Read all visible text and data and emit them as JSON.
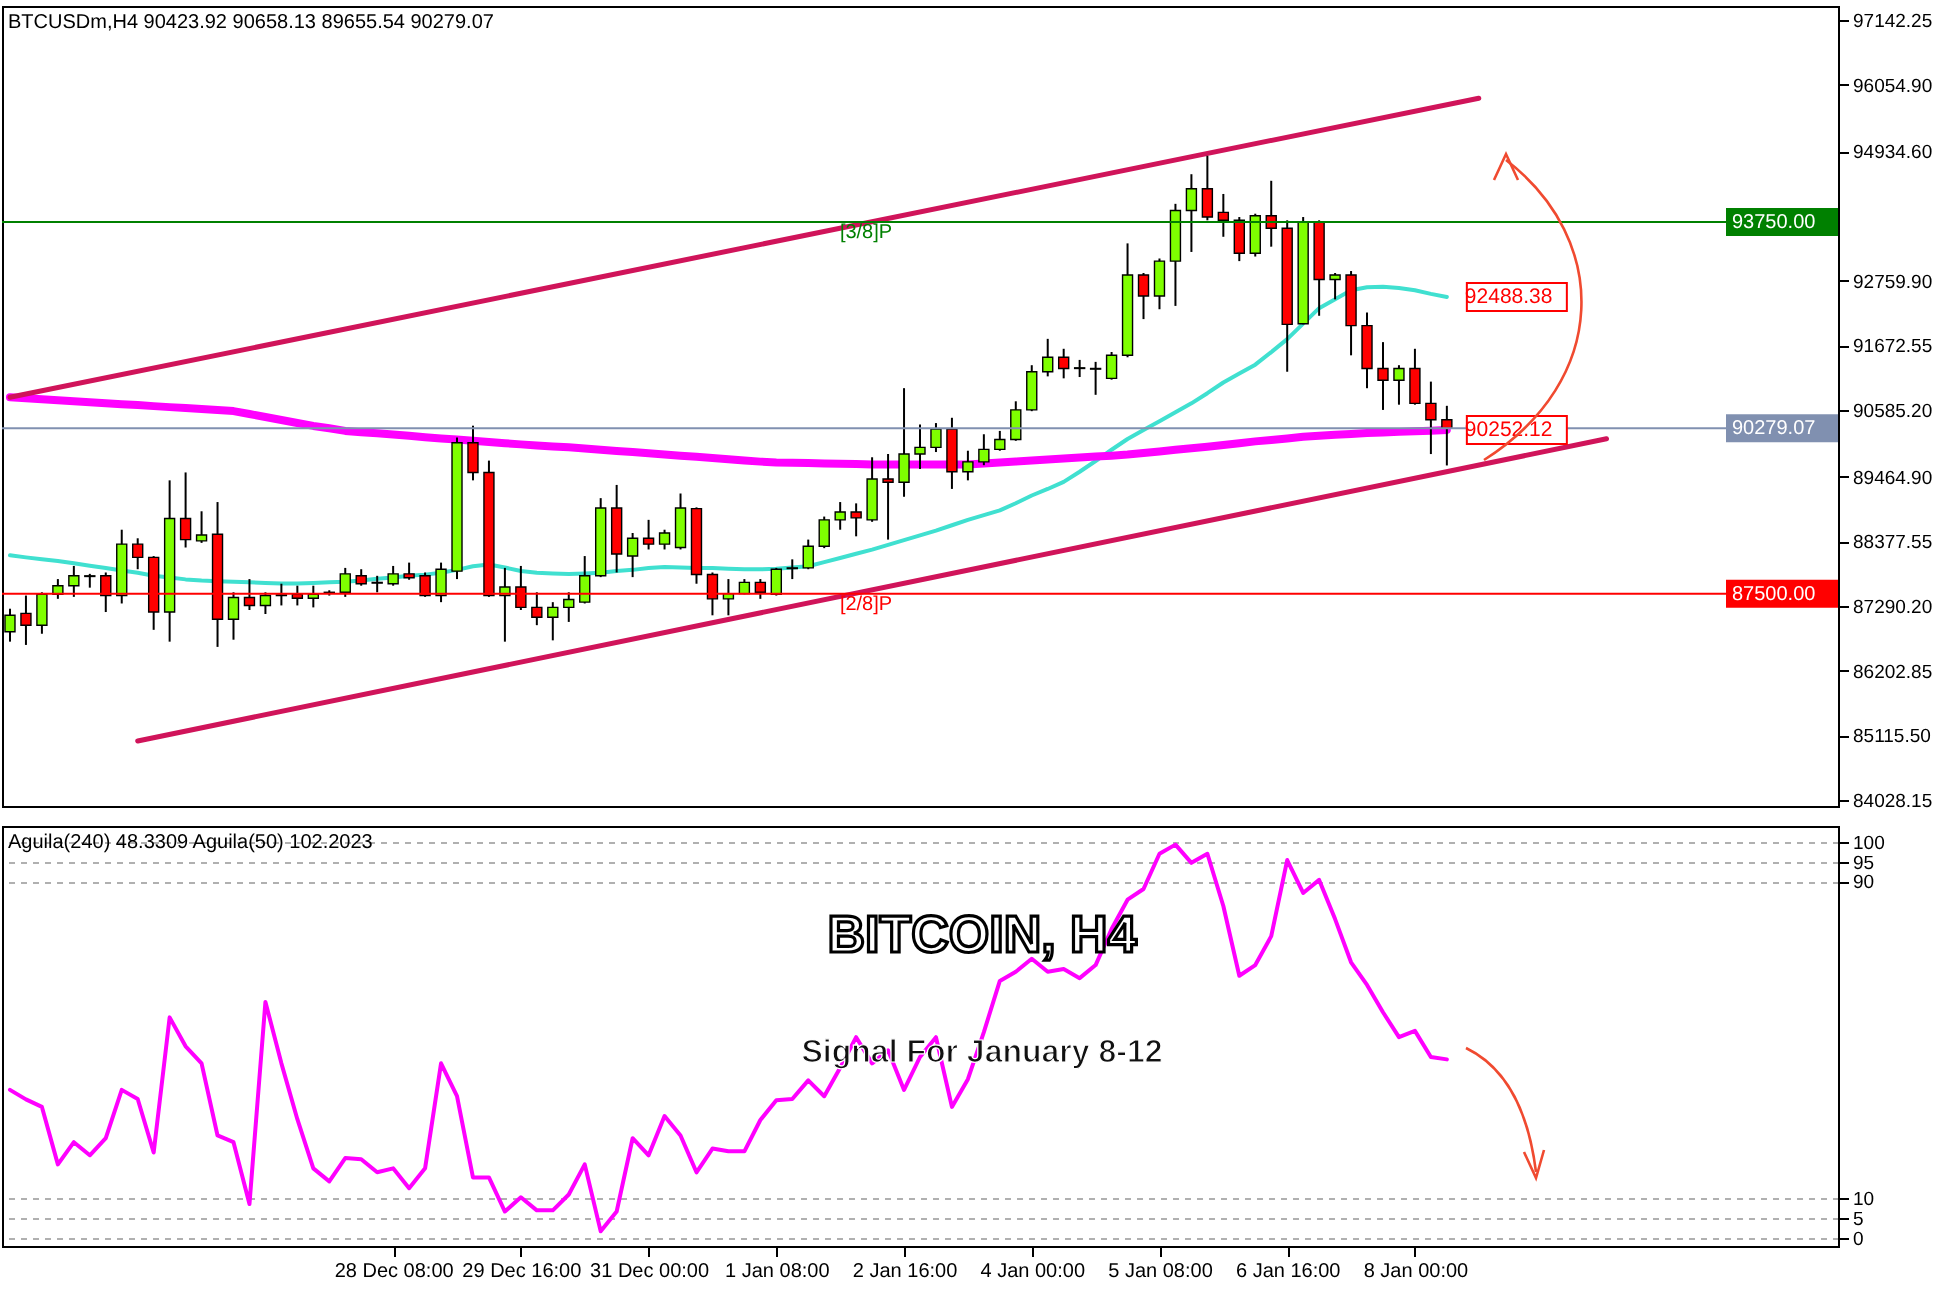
{
  "chart_data": [
    {
      "type": "candlestick",
      "title": "BTCUSDm,H4  90423.92 90658.13 89655.54 90279.07",
      "categories": [
        null,
        null,
        null,
        null,
        null,
        null,
        null,
        null,
        null,
        null,
        null,
        null,
        null,
        null,
        null,
        null,
        null,
        null,
        null,
        null,
        null,
        null,
        null,
        null,
        null,
        null,
        null,
        null,
        null,
        null,
        null,
        null,
        null,
        null,
        null,
        null,
        null,
        null,
        null,
        null,
        null,
        null,
        null,
        null,
        null,
        null,
        null,
        null,
        null,
        null,
        null,
        null,
        null,
        null,
        null,
        null,
        null,
        null,
        null,
        null,
        null,
        null,
        null,
        null,
        null,
        null,
        null,
        null,
        null,
        null,
        null,
        null,
        null,
        null,
        null,
        null,
        null,
        null,
        null,
        null,
        null,
        null,
        null,
        null,
        null,
        null,
        null,
        null,
        null,
        null,
        null,
        null,
        null,
        null,
        null,
        null,
        null,
        null,
        null,
        null,
        null,
        null,
        null,
        null,
        null,
        null,
        null,
        null,
        null,
        null,
        null,
        null,
        null,
        null,
        null
      ],
      "ohlc": [
        [
          86859,
          87247,
          86693,
          87136
        ],
        [
          87169,
          87468,
          86638,
          86970
        ],
        [
          86970,
          87523,
          86826,
          87490
        ],
        [
          87490,
          87745,
          87413,
          87634
        ],
        [
          87634,
          87966,
          87446,
          87800
        ],
        [
          87789,
          87833,
          87601,
          87800
        ],
        [
          87800,
          87856,
          87191,
          87468
        ],
        [
          87468,
          88575,
          87335,
          88332
        ],
        [
          88332,
          88431,
          87911,
          88110
        ],
        [
          88110,
          88132,
          86892,
          87191
        ],
        [
          87191,
          89405,
          86693,
          88763
        ],
        [
          88763,
          89538,
          88276,
          88409
        ],
        [
          88387,
          88885,
          88354,
          88487
        ],
        [
          88498,
          89040,
          86605,
          87070
        ],
        [
          87070,
          87523,
          86726,
          87435
        ],
        [
          87435,
          87745,
          87225,
          87302
        ],
        [
          87302,
          87523,
          87158,
          87468
        ],
        [
          87468,
          87667,
          87302,
          87479
        ],
        [
          87490,
          87634,
          87302,
          87424
        ],
        [
          87424,
          87634,
          87269,
          87490
        ],
        [
          87512,
          87557,
          87468,
          87523
        ],
        [
          87523,
          87933,
          87446,
          87833
        ],
        [
          87800,
          87911,
          87634,
          87667
        ],
        [
          87689,
          87800,
          87523,
          87678
        ],
        [
          87667,
          87966,
          87634,
          87833
        ],
        [
          87833,
          88022,
          87734,
          87767
        ],
        [
          87800,
          87856,
          87446,
          87468
        ],
        [
          87468,
          88022,
          87357,
          87911
        ],
        [
          87878,
          90125,
          87745,
          90036
        ],
        [
          90036,
          90324,
          89405,
          89538
        ],
        [
          89538,
          89737,
          87446,
          87468
        ],
        [
          87468,
          87933,
          86693,
          87612
        ],
        [
          87612,
          87966,
          87225,
          87269
        ],
        [
          87269,
          87523,
          86970,
          87103
        ],
        [
          87103,
          87357,
          86715,
          87269
        ],
        [
          87269,
          87523,
          87025,
          87402
        ],
        [
          87357,
          88132,
          87335,
          87800
        ],
        [
          87800,
          89106,
          87778,
          88940
        ],
        [
          88940,
          89328,
          87856,
          88166
        ],
        [
          88132,
          88520,
          87778,
          88431
        ],
        [
          88431,
          88741,
          88243,
          88332
        ],
        [
          88332,
          88575,
          88243,
          88520
        ],
        [
          88276,
          89184,
          88243,
          88940
        ],
        [
          88929,
          88951,
          87667,
          87822
        ],
        [
          87822,
          87856,
          87136,
          87413
        ],
        [
          87413,
          87745,
          87136,
          87501
        ],
        [
          87501,
          87745,
          87490,
          87689
        ],
        [
          87689,
          87745,
          87413,
          87523
        ],
        [
          87490,
          87933,
          87468,
          87911
        ],
        [
          87922,
          88077,
          87745,
          87933
        ],
        [
          87933,
          88409,
          87911,
          88298
        ],
        [
          88298,
          88796,
          88265,
          88741
        ],
        [
          88741,
          89040,
          88575,
          88874
        ],
        [
          88874,
          89018,
          88464,
          88774
        ],
        [
          88741,
          89793,
          88708,
          89427
        ],
        [
          89427,
          89848,
          88409,
          89372
        ],
        [
          89372,
          90955,
          89129,
          89848
        ],
        [
          89848,
          90346,
          89594,
          89959
        ],
        [
          89959,
          90368,
          89881,
          90269
        ],
        [
          90269,
          90457,
          89261,
          89549
        ],
        [
          89549,
          89903,
          89405,
          89715
        ],
        [
          89715,
          90180,
          89660,
          89926
        ],
        [
          89926,
          90236,
          89903,
          90092
        ],
        [
          90092,
          90734,
          90070,
          90590
        ],
        [
          90590,
          91341,
          90568,
          91231
        ],
        [
          91231,
          91784,
          91153,
          91474
        ],
        [
          91474,
          91617,
          91120,
          91286
        ],
        [
          91286,
          91430,
          91142,
          91297
        ],
        [
          91275,
          91397,
          90843,
          91286
        ],
        [
          91120,
          91563,
          91098,
          91507
        ],
        [
          91507,
          93389,
          91474,
          92858
        ],
        [
          92858,
          92891,
          92116,
          92504
        ],
        [
          92504,
          93135,
          92282,
          93090
        ],
        [
          93090,
          94054,
          92338,
          93943
        ],
        [
          93943,
          94552,
          93245,
          94308
        ],
        [
          94308,
          94862,
          93777,
          93832
        ],
        [
          93910,
          94220,
          93500,
          93777
        ],
        [
          93777,
          93832,
          93091,
          93223
        ],
        [
          93223,
          93888,
          93168,
          93854
        ],
        [
          93854,
          94441,
          93334,
          93644
        ],
        [
          93644,
          93777,
          91231,
          92028
        ],
        [
          92039,
          93832,
          92028,
          93755
        ],
        [
          93755,
          93777,
          92172,
          92781
        ],
        [
          92781,
          92891,
          92448,
          92858
        ],
        [
          92858,
          92924,
          91507,
          92006
        ],
        [
          92006,
          92227,
          90954,
          91286
        ],
        [
          91286,
          91729,
          90589,
          91087
        ],
        [
          91087,
          91341,
          90677,
          91286
        ],
        [
          91286,
          91617,
          90677,
          90699
        ],
        [
          90699,
          91065,
          89847,
          90423
        ],
        [
          90423.92,
          90658.13,
          89655.54,
          90279.07
        ],
        null,
        null,
        null,
        null,
        null,
        null,
        null,
        null,
        null,
        null,
        null,
        null,
        null,
        null,
        null,
        null,
        null,
        null,
        null,
        null,
        null,
        null,
        null,
        null
      ],
      "colors": [
        "#7fff00",
        "#ff0000",
        "#7fff00",
        "#7fff00",
        "#7fff00",
        "#7fff00",
        "#ff0000",
        "#7fff00",
        "#ff0000",
        "#ff0000",
        "#7fff00",
        "#ff0000",
        "#7fff00",
        "#ff0000",
        "#7fff00",
        "#ff0000",
        "#7fff00",
        "#7fff00",
        "#ff0000",
        "#7fff00",
        "#7fff00",
        "#7fff00",
        "#ff0000",
        "#ff0000",
        "#7fff00",
        "#ff0000",
        "#ff0000",
        "#7fff00",
        "#7fff00",
        "#ff0000",
        "#ff0000",
        "#7fff00",
        "#ff0000",
        "#ff0000",
        "#7fff00",
        "#7fff00",
        "#7fff00",
        "#7fff00",
        "#ff0000",
        "#7fff00",
        "#ff0000",
        "#7fff00",
        "#7fff00",
        "#ff0000",
        "#ff0000",
        "#7fff00",
        "#7fff00",
        "#ff0000",
        "#7fff00",
        "#7fff00",
        "#7fff00",
        "#7fff00",
        "#7fff00",
        "#ff0000",
        "#7fff00",
        "#ff0000",
        "#7fff00",
        "#7fff00",
        "#7fff00",
        "#ff0000",
        "#7fff00",
        "#7fff00",
        "#7fff00",
        "#7fff00",
        "#7fff00",
        "#7fff00",
        "#ff0000",
        "#7fff00",
        "#7fff00",
        "#7fff00",
        "#7fff00",
        "#ff0000",
        "#7fff00",
        "#7fff00",
        "#7fff00",
        "#ff0000",
        "#ff0000",
        "#ff0000",
        "#7fff00",
        "#ff0000",
        "#ff0000",
        "#7fff00",
        "#ff0000",
        "#7fff00",
        "#ff0000",
        "#ff0000",
        "#ff0000",
        "#7fff00",
        "#ff0000",
        "#ff0000",
        "#ff0000",
        null,
        null,
        null,
        null,
        null,
        null,
        null,
        null,
        null,
        null,
        null,
        null,
        null,
        null,
        null,
        null,
        null,
        null,
        null,
        null,
        null,
        null,
        null,
        null
      ],
      "series": [
        {
          "type": "line",
          "color": "#40e0d0",
          "values": [
            88145,
            88110,
            88080,
            88050,
            88010,
            87970,
            87930,
            87890,
            87850,
            87800,
            87770,
            87740,
            87720,
            87710,
            87700,
            87690,
            87680,
            87670,
            87670,
            87680,
            87690,
            87700,
            87720,
            87750,
            87770,
            87800,
            87820,
            87850,
            87900,
            87960,
            87990,
            87940,
            87880,
            87850,
            87840,
            87830,
            87840,
            87850,
            87880,
            87900,
            87930,
            87950,
            87940,
            87930,
            87930,
            87920,
            87910,
            87910,
            87920,
            87940,
            87960,
            88030,
            88100,
            88170,
            88240,
            88320,
            88400,
            88480,
            88560,
            88650,
            88740,
            88820,
            88900,
            89020,
            89150,
            89260,
            89380,
            89550,
            89730,
            89920,
            90100,
            90250,
            90400,
            90550,
            90700,
            90870,
            91050,
            91200,
            91350,
            91560,
            91780,
            92040,
            92300,
            92450,
            92600,
            92650,
            92660,
            92640,
            92600,
            92540,
            92488.38,
            null,
            null,
            null,
            null,
            null,
            null,
            null,
            null,
            null,
            null,
            null,
            null,
            null,
            null,
            null,
            null,
            null,
            null,
            null,
            null,
            null,
            null,
            null,
            null
          ],
          "value_labels": [
            null,
            null,
            null,
            null,
            null,
            null,
            null,
            null,
            null,
            null,
            null,
            null,
            null,
            null,
            null,
            null,
            null,
            null,
            null,
            null,
            null,
            null,
            null,
            null,
            null,
            null,
            null,
            null,
            null,
            null,
            null,
            null,
            null,
            null,
            null,
            null,
            null,
            null,
            null,
            null,
            null,
            null,
            null,
            null,
            null,
            null,
            null,
            null,
            null,
            null,
            null,
            null,
            null,
            null,
            null,
            null,
            null,
            null,
            null,
            null,
            null,
            null,
            null,
            null,
            null,
            null,
            null,
            null,
            null,
            null,
            null,
            null,
            null,
            null,
            null,
            null,
            null,
            null,
            null,
            null,
            null,
            null,
            null,
            null,
            null,
            null,
            null,
            null,
            null,
            null,
            "92488.38",
            null,
            null,
            null,
            null,
            null,
            null,
            null,
            null,
            null,
            null,
            null,
            null,
            null,
            null,
            null,
            null,
            null,
            null,
            null,
            null,
            null,
            null,
            null,
            null
          ]
        },
        {
          "type": "line",
          "color": "#ff00ff",
          "values": [
            90801,
            90785,
            90770,
            90753,
            90736,
            90720,
            90703,
            90686,
            90670,
            90653,
            90636,
            90620,
            90603,
            90586,
            90569,
            90520,
            90470,
            90420,
            90370,
            90320,
            90280,
            90236,
            90215,
            90195,
            90175,
            90155,
            90130,
            90110,
            90090,
            90070,
            90050,
            90030,
            90010,
            89990,
            89975,
            89960,
            89940,
            89920,
            89900,
            89880,
            89860,
            89838,
            89820,
            89800,
            89780,
            89760,
            89740,
            89720,
            89705,
            89700,
            89695,
            89690,
            89685,
            89680,
            89672,
            89672,
            89672,
            89672,
            89672,
            89672,
            89672,
            89690,
            89705,
            89720,
            89740,
            89755,
            89772,
            89790,
            89805,
            89820,
            89838,
            89865,
            89890,
            89920,
            89945,
            89971,
            90000,
            90030,
            90060,
            90085,
            90110,
            90137,
            90155,
            90170,
            90185,
            90200,
            90210,
            90220,
            90230,
            90240,
            90252.12,
            null,
            null,
            null,
            null,
            null,
            null,
            null,
            null,
            null,
            null,
            null,
            null,
            null,
            null,
            null,
            null,
            null,
            null,
            null,
            null,
            null,
            null,
            null,
            null
          ],
          "value_labels": [
            null,
            null,
            null,
            null,
            null,
            null,
            null,
            null,
            null,
            null,
            null,
            null,
            null,
            null,
            null,
            null,
            null,
            null,
            null,
            null,
            null,
            null,
            null,
            null,
            null,
            null,
            null,
            null,
            null,
            null,
            null,
            null,
            null,
            null,
            null,
            null,
            null,
            null,
            null,
            null,
            null,
            null,
            null,
            null,
            null,
            null,
            null,
            null,
            null,
            null,
            null,
            null,
            null,
            null,
            null,
            null,
            null,
            null,
            null,
            null,
            null,
            null,
            null,
            null,
            null,
            null,
            null,
            null,
            null,
            null,
            null,
            null,
            null,
            null,
            null,
            null,
            null,
            null,
            null,
            null,
            null,
            null,
            null,
            null,
            null,
            null,
            null,
            null,
            null,
            null,
            "90252.12",
            null,
            null,
            null,
            null,
            null,
            null,
            null,
            null,
            null,
            null,
            null,
            null,
            null,
            null,
            null,
            null,
            null,
            null,
            null,
            null,
            null,
            null,
            null,
            null
          ]
        },
        {
          "type": "line",
          "color": "#d0145a",
          "values": [
            90801,
            null,
            null,
            null,
            null,
            null,
            null,
            null,
            null,
            null,
            null,
            null,
            null,
            null,
            null,
            null,
            null,
            null,
            null,
            null,
            null,
            null,
            null,
            null,
            null,
            null,
            null,
            null,
            null,
            null,
            null,
            null,
            null,
            null,
            null,
            null,
            null,
            null,
            null,
            null,
            null,
            null,
            null,
            null,
            null,
            null,
            null,
            null,
            null,
            null,
            null,
            null,
            null,
            null,
            null,
            null,
            null,
            null,
            null,
            null,
            null,
            null,
            null,
            null,
            null,
            null,
            null,
            null,
            null,
            null,
            null,
            null,
            null,
            null,
            null,
            null,
            null,
            null,
            null,
            null,
            null,
            null,
            null,
            null,
            null,
            null,
            null,
            null,
            null,
            null,
            null,
            null,
            95830,
            null,
            null,
            null,
            null,
            null,
            null,
            null,
            null,
            null,
            null,
            null,
            null,
            null,
            null,
            null,
            null,
            null,
            null,
            null,
            null,
            null,
            null
          ]
        },
        {
          "type": "line",
          "color": "#d0145a",
          "values": [
            null,
            null,
            null,
            null,
            null,
            null,
            null,
            null,
            85024,
            null,
            null,
            null,
            null,
            null,
            null,
            null,
            null,
            null,
            null,
            null,
            null,
            null,
            null,
            null,
            null,
            null,
            null,
            null,
            null,
            null,
            null,
            null,
            null,
            null,
            null,
            null,
            null,
            null,
            null,
            null,
            null,
            null,
            null,
            null,
            null,
            null,
            null,
            null,
            null,
            null,
            null,
            null,
            null,
            null,
            null,
            null,
            null,
            null,
            null,
            null,
            null,
            null,
            null,
            null,
            null,
            null,
            null,
            null,
            null,
            null,
            null,
            null,
            null,
            null,
            null,
            null,
            null,
            null,
            null,
            null,
            null,
            null,
            null,
            null,
            null,
            null,
            null,
            null,
            null,
            null,
            null,
            null,
            null,
            null,
            null,
            null,
            null,
            null,
            null,
            null,
            90104,
            null,
            null,
            null,
            null,
            null,
            null,
            null,
            null,
            null,
            null,
            null,
            null,
            null,
            null
          ]
        }
      ],
      "ylim": [
        83930,
        97380
      ],
      "yticks": [
        {
          "value": 84028.15,
          "label": "84028.15"
        },
        {
          "value": 85115.5,
          "label": "85115.50"
        },
        {
          "value": 86202.85,
          "label": "86202.85"
        },
        {
          "value": 87290.2,
          "label": "87290.20"
        },
        {
          "value": 88377.55,
          "label": "88377.55"
        },
        {
          "value": 89464.9,
          "label": "89464.90"
        },
        {
          "value": 90585.2,
          "label": "90585.20"
        },
        {
          "value": 91672.55,
          "label": "91672.55"
        },
        {
          "value": 92759.9,
          "label": "92759.90"
        },
        {
          "value": 94934.6,
          "label": "94934.60"
        },
        {
          "value": 96054.9,
          "label": "96054.90"
        },
        {
          "value": 97142.25,
          "label": "97142.25"
        }
      ],
      "ref_lines": [
        {
          "axis": "y",
          "value": 93750,
          "label": "93750.00",
          "color": "#008000"
        },
        {
          "axis": "y",
          "value": 87500,
          "label": "87500.00",
          "color": "#ff0000"
        },
        {
          "axis": "y",
          "value": 90279.07,
          "label": "90279.07",
          "color": "#8090b0"
        }
      ],
      "annotations": [
        {
          "text": "[3/8]P",
          "y": 93750
        },
        {
          "text": "[2/8]P",
          "y": 87500
        }
      ],
      "tick_labels": "y"
    },
    {
      "type": "line",
      "title": "Aguila(240) 48.3309  Aguila(50) 102.2023",
      "categories": [
        null,
        null,
        null,
        null,
        null,
        null,
        null,
        null,
        null,
        null,
        null,
        null,
        null,
        null,
        null,
        null,
        null,
        null,
        null,
        null,
        null,
        null,
        null,
        null,
        "28 Dec 08:00",
        null,
        null,
        null,
        null,
        null,
        null,
        null,
        "29 Dec 16:00",
        null,
        null,
        null,
        null,
        null,
        null,
        null,
        "31 Dec 00:00",
        null,
        null,
        null,
        null,
        null,
        null,
        null,
        "1 Jan 08:00",
        null,
        null,
        null,
        null,
        null,
        null,
        null,
        "2 Jan 16:00",
        null,
        null,
        null,
        null,
        null,
        null,
        null,
        "4 Jan 00:00",
        null,
        null,
        null,
        null,
        null,
        null,
        null,
        "5 Jan 08:00",
        null,
        null,
        null,
        null,
        null,
        null,
        null,
        "6 Jan 16:00",
        null,
        null,
        null,
        null,
        null,
        null,
        null,
        "8 Jan 00:00",
        null,
        null,
        null,
        null,
        null,
        null,
        null,
        null,
        null,
        null,
        null,
        null,
        null,
        null,
        null,
        null,
        null,
        null,
        null,
        null,
        null,
        null,
        null,
        null,
        null,
        null
      ],
      "series": [
        {
          "color": "#ff00ff",
          "values": [
            37.4,
            35.0,
            33.1,
            18.6,
            24.2,
            20.9,
            25.2,
            37.4,
            35.1,
            21.6,
            55.7,
            48.4,
            44.1,
            25.9,
            24.2,
            8.6,
            59.6,
            44.1,
            30.0,
            17.6,
            14.3,
            20.2,
            19.9,
            16.6,
            17.6,
            12.6,
            17.6,
            44.1,
            35.8,
            15.3,
            15.3,
            6.7,
            10.3,
            7.0,
            7.0,
            11.0,
            18.6,
            1.7,
            6.7,
            25.2,
            20.9,
            30.8,
            25.9,
            16.6,
            22.6,
            21.9,
            21.9,
            29.8,
            34.8,
            35.1,
            39.8,
            35.8,
            43.0,
            50.7,
            44.1,
            47.4,
            37.4,
            45.7,
            50.7,
            33.1,
            40.1,
            52.0,
            64.9,
            67.2,
            70.5,
            67.2,
            67.9,
            65.6,
            68.9,
            78.0,
            85.4,
            88.1,
            97.0,
            99.3,
            94.7,
            97.0,
            83.8,
            66.2,
            68.9,
            76.2,
            95.4,
            87.1,
            90.4,
            80.5,
            69.6,
            63.9,
            57.0,
            50.7,
            52.3,
            45.7,
            45.1,
            null,
            null,
            null,
            null,
            null,
            null,
            null,
            null,
            null,
            null,
            null,
            null,
            null,
            null,
            null,
            null,
            null,
            null,
            null,
            null,
            null,
            null,
            null,
            null
          ]
        }
      ],
      "ylim": [
        -2,
        104
      ],
      "yticks": [
        0,
        5,
        10,
        90,
        95,
        100
      ],
      "grid": "y",
      "annotations": [
        "BITCOIN, H4",
        "Signal For January 8-12"
      ]
    }
  ]
}
